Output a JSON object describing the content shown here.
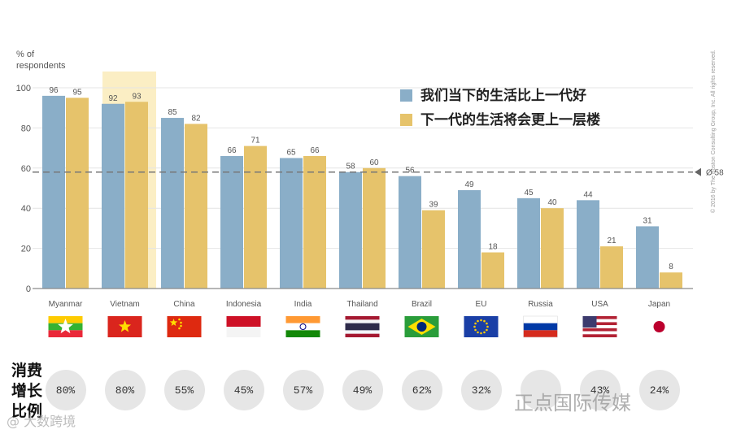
{
  "chart_data": {
    "type": "bar",
    "y_axis_title_line1": "% of",
    "y_axis_title_line2": "respondents",
    "ylim": [
      0,
      100
    ],
    "yticks": [
      0,
      20,
      40,
      60,
      80,
      100
    ],
    "categories": [
      "Myanmar",
      "Vietnam",
      "China",
      "Indonesia",
      "India",
      "Thailand",
      "Brazil",
      "EU",
      "Russia",
      "USA",
      "Japan"
    ],
    "highlighted_category": "Vietnam",
    "series": [
      {
        "name": "我们当下的生活比上一代好",
        "color": "#8aaec8",
        "values": [
          96,
          92,
          85,
          66,
          65,
          58,
          56,
          49,
          45,
          44,
          31
        ]
      },
      {
        "name": "下一代的生活将会更上一层楼",
        "color": "#e6c36b",
        "values": [
          95,
          93,
          82,
          71,
          66,
          60,
          39,
          18,
          40,
          21,
          8
        ]
      }
    ],
    "average_line": {
      "value": 58,
      "label": "Ø 58"
    },
    "consumption_growth": {
      "label_lines": [
        "消费",
        "增长",
        "比例"
      ],
      "values": [
        "80%",
        "80%",
        "55%",
        "45%",
        "57%",
        "49%",
        "62%",
        "32%",
        "",
        "43%",
        "24%"
      ]
    }
  },
  "flags": [
    "myanmar-flag",
    "vietnam-flag",
    "china-flag",
    "indonesia-flag",
    "india-flag",
    "thailand-flag",
    "brazil-flag",
    "eu-flag",
    "russia-flag",
    "usa-flag",
    "japan-flag"
  ],
  "watermark_right": "正点国际传媒",
  "watermark_left": "@ 大数跨境",
  "copyright": "© 2016 by The Boston Consulting Group, Inc. All rights reserved."
}
